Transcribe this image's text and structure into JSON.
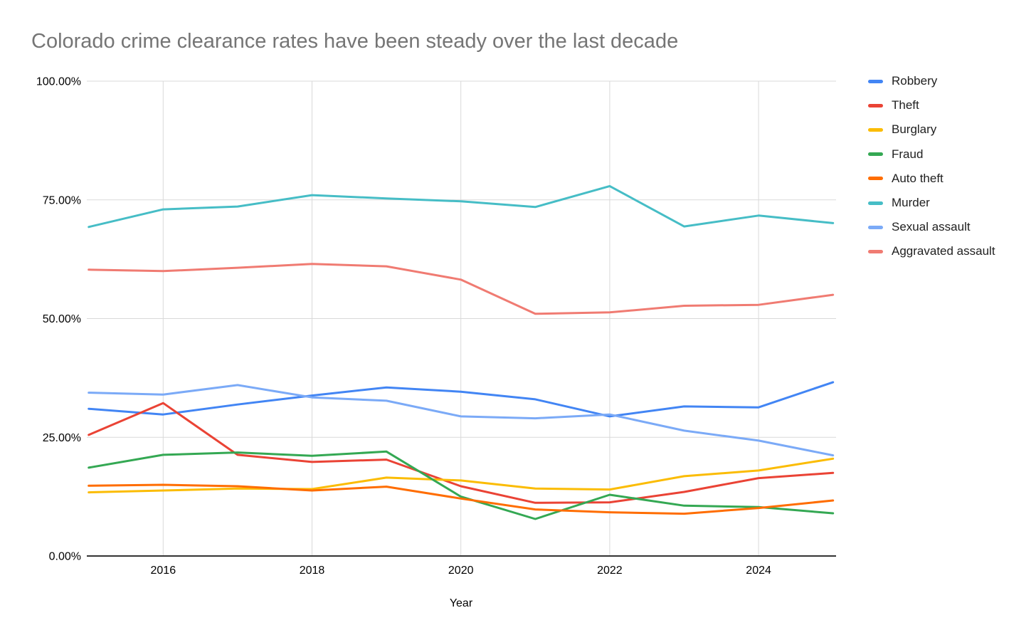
{
  "title": "Colorado crime clearance rates have been steady over the last decade",
  "chart_data": {
    "type": "line",
    "title": "Colorado crime clearance rates have been steady over the last decade",
    "xlabel": "Year",
    "ylabel": "",
    "unit": "percent",
    "grid": true,
    "legend_position": "right",
    "xlim": [
      2015,
      2025
    ],
    "ylim": [
      0,
      100
    ],
    "x": [
      2015,
      2016,
      2017,
      2018,
      2019,
      2020,
      2021,
      2022,
      2023,
      2024,
      2025
    ],
    "x_tick_values": [
      2016,
      2018,
      2020,
      2022,
      2024
    ],
    "x_tick_labels": [
      "2016",
      "2018",
      "2020",
      "2022",
      "2024"
    ],
    "y_tick_values": [
      100,
      75,
      50,
      25,
      0
    ],
    "y_tick_labels": [
      "100.00%",
      "75.00%",
      "50.00%",
      "25.00%",
      "0.00%"
    ],
    "series": [
      {
        "name": "Robbery",
        "color": "#4285F4",
        "values": [
          31.0,
          29.8,
          31.9,
          33.8,
          35.5,
          34.6,
          33.0,
          29.4,
          31.5,
          31.3,
          36.6
        ]
      },
      {
        "name": "Theft",
        "color": "#EA4335",
        "values": [
          25.5,
          32.2,
          21.3,
          19.8,
          20.3,
          14.7,
          11.2,
          11.3,
          13.5,
          16.4,
          17.5
        ]
      },
      {
        "name": "Burglary",
        "color": "#FBBC04",
        "values": [
          13.4,
          13.8,
          14.2,
          14.1,
          16.5,
          15.9,
          14.2,
          14.0,
          16.8,
          18.0,
          20.5
        ]
      },
      {
        "name": "Fraud",
        "color": "#34A853",
        "values": [
          18.6,
          21.3,
          21.8,
          21.1,
          22.0,
          12.5,
          7.8,
          12.9,
          10.6,
          10.3,
          9.0
        ]
      },
      {
        "name": "Auto theft",
        "color": "#FF6D01",
        "values": [
          14.8,
          15.0,
          14.7,
          13.8,
          14.6,
          12.1,
          9.8,
          9.2,
          8.9,
          10.1,
          11.7
        ]
      },
      {
        "name": "Murder",
        "color": "#46BDC6",
        "values": [
          69.3,
          73.0,
          73.6,
          76.0,
          75.3,
          74.7,
          73.5,
          77.9,
          69.4,
          71.7,
          70.1
        ]
      },
      {
        "name": "Sexual assault",
        "color": "#7BAAF7",
        "values": [
          34.4,
          34.0,
          36.0,
          33.4,
          32.7,
          29.4,
          29.0,
          29.8,
          26.4,
          24.3,
          21.2
        ]
      },
      {
        "name": "Aggravated assault",
        "color": "#F07B72",
        "values": [
          60.3,
          60.0,
          60.7,
          61.5,
          61.0,
          58.2,
          51.0,
          51.3,
          52.7,
          52.9,
          55.0
        ]
      }
    ],
    "style": {
      "gridline_color": "#d9d9d9",
      "axis_line_color": "#333333",
      "title_color": "#757575",
      "tick_label_color": "#000000"
    }
  }
}
